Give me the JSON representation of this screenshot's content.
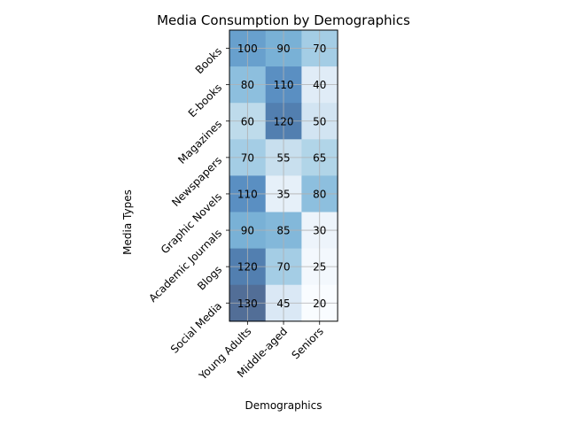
{
  "chart_data": {
    "type": "heatmap",
    "title": "Media Consumption by Demographics",
    "xlabel": "Demographics",
    "ylabel": "Media Types",
    "columns": [
      "Young Adults",
      "Middle-aged",
      "Seniors"
    ],
    "rows": [
      "Books",
      "E-books",
      "Magazines",
      "Newspapers",
      "Graphic Novels",
      "Academic Journals",
      "Blogs",
      "Social Media"
    ],
    "values": [
      [
        100,
        90,
        70
      ],
      [
        80,
        110,
        40
      ],
      [
        60,
        120,
        50
      ],
      [
        70,
        55,
        65
      ],
      [
        110,
        35,
        80
      ],
      [
        90,
        85,
        30
      ],
      [
        120,
        70,
        25
      ],
      [
        130,
        45,
        20
      ]
    ],
    "value_range": [
      20,
      130
    ],
    "colormap": "Blues",
    "grid": true
  }
}
